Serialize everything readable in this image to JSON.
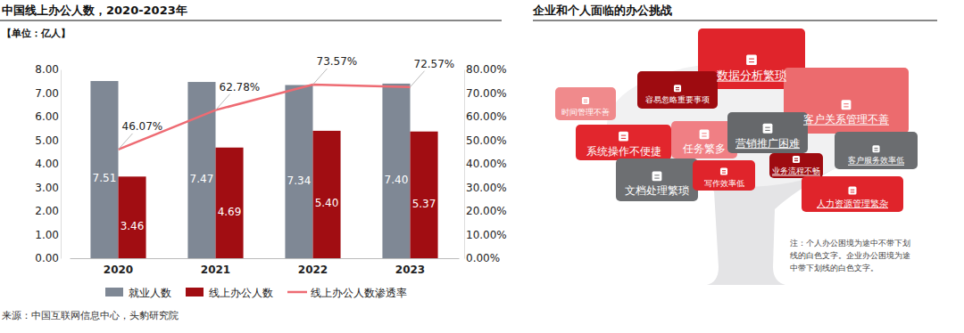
{
  "chart_data": {
    "type": "bar",
    "title": "中国线上办公人数，2020-2023年",
    "subtitle": "【单位：亿人】",
    "source": "来源：中国互联网信息中心，头豹研究院",
    "categories": [
      "2020",
      "2021",
      "2022",
      "2023"
    ],
    "series": [
      {
        "name": "就业人数",
        "type": "bar",
        "color": "#7f8895",
        "values": [
          7.51,
          7.47,
          7.34,
          7.4
        ],
        "value_labels": [
          "7.51",
          "7.47",
          "7.34",
          "7.40"
        ]
      },
      {
        "name": "线上办公人数",
        "type": "bar",
        "color": "#a10d12",
        "values": [
          3.46,
          4.69,
          5.4,
          5.37
        ],
        "value_labels": [
          "3.46",
          "4.69",
          "5.40",
          "5.37"
        ]
      },
      {
        "name": "线上办公人数渗透率",
        "type": "line",
        "axis": "y2",
        "color": "#ee6b73",
        "line_style": "solid",
        "values": [
          46.07,
          62.78,
          73.57,
          72.57
        ],
        "value_labels": [
          "46.07%",
          "62.78%",
          "73.57%",
          "72.57%"
        ]
      }
    ],
    "ylim": [
      0,
      8
    ],
    "yticks": [
      {
        "value": 0,
        "label": "0.00"
      },
      {
        "value": 1,
        "label": "1.00"
      },
      {
        "value": 2,
        "label": "2.00"
      },
      {
        "value": 3,
        "label": "3.00"
      },
      {
        "value": 4,
        "label": "4.00"
      },
      {
        "value": 5,
        "label": "5.00"
      },
      {
        "value": 6,
        "label": "6.00"
      },
      {
        "value": 7,
        "label": "7.00"
      },
      {
        "value": 8,
        "label": "8.00"
      }
    ],
    "y2lim": [
      0,
      80
    ],
    "y2ticks": [
      {
        "value": 0,
        "label": "0.00%"
      },
      {
        "value": 10,
        "label": "10.00%"
      },
      {
        "value": 20,
        "label": "20.00%"
      },
      {
        "value": 30,
        "label": "30.00%"
      },
      {
        "value": 40,
        "label": "40.00%"
      },
      {
        "value": 50,
        "label": "50.00%"
      },
      {
        "value": 60,
        "label": "60.00%"
      },
      {
        "value": 70,
        "label": "70.00%"
      },
      {
        "value": 80,
        "label": "80.00%"
      }
    ],
    "grid": false,
    "legend": "bottom",
    "data_labels": true
  },
  "diagram": {
    "title": "企业和个人面临的办公挑战",
    "items": [
      {
        "label": "数据分析繁琐",
        "color": "#e0242b",
        "underline": true
      },
      {
        "label": "客户关系管理不善",
        "color": "#ec6b6e",
        "underline": true
      },
      {
        "label": "时间管理不善",
        "color": "#f08a8c",
        "underline": false
      },
      {
        "label": "容易忽略重要事项",
        "color": "#9e0b10",
        "underline": false
      },
      {
        "label": "系统操作不便捷",
        "color": "#e2262d",
        "underline": false
      },
      {
        "label": "任务繁多",
        "color": "#f07f84",
        "underline": false
      },
      {
        "label": "营销推广困难",
        "color": "#66686b",
        "underline": true
      },
      {
        "label": "客户服务效率低",
        "color": "#6b6d70",
        "underline": true
      },
      {
        "label": "文档处理繁琐",
        "color": "#6d6f72",
        "underline": false
      },
      {
        "label": "写作效率低",
        "color": "#e0242b",
        "underline": false
      },
      {
        "label": "业务流程不畅",
        "color": "#9e0b10",
        "underline": true
      },
      {
        "label": "人力资源管理繁杂",
        "color": "#e0242b",
        "underline": true
      }
    ],
    "note_lines": [
      "注：个人办公困境为途中不带下划",
      "线的白色文字。企业办公困境为途",
      "中带下划线的白色文字。"
    ]
  }
}
